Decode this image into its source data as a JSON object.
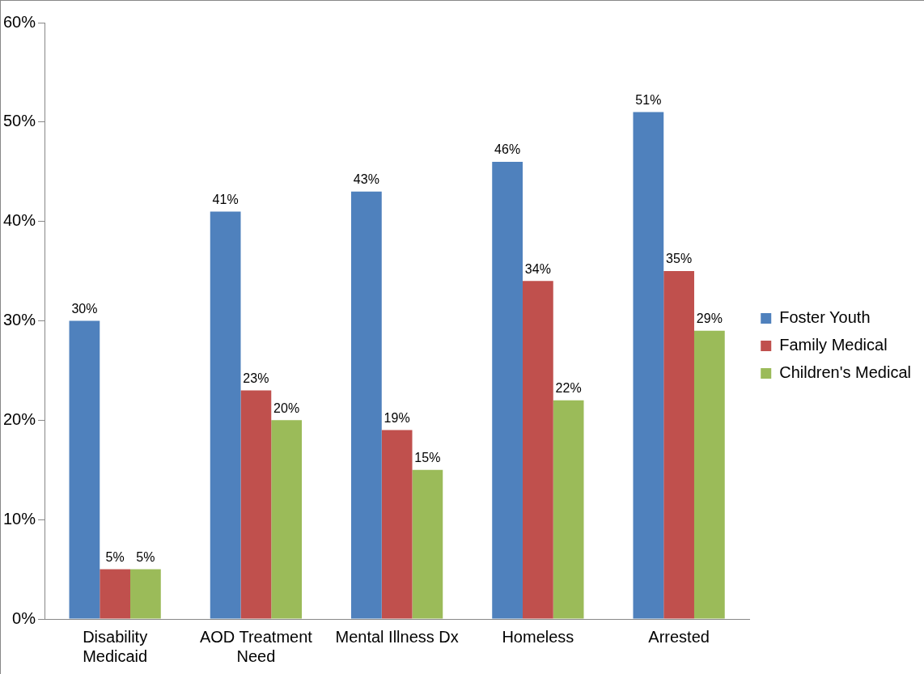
{
  "chart_data": {
    "type": "bar",
    "categories": [
      "Disability Medicaid",
      "AOD Treatment Need",
      "Mental Illness Dx",
      "Homeless",
      "Arrested"
    ],
    "series": [
      {
        "name": "Foster Youth",
        "color": "#4f81bd",
        "values": [
          30,
          41,
          43,
          46,
          51
        ],
        "value_labels": [
          "30%",
          "41%",
          "43%",
          "46%",
          "51%"
        ]
      },
      {
        "name": "Family Medical",
        "color": "#c0504d",
        "values": [
          5,
          23,
          19,
          34,
          35
        ],
        "value_labels": [
          "5%",
          "23%",
          "19%",
          "34%",
          "35%"
        ]
      },
      {
        "name": "Children's Medical",
        "color": "#9bbb59",
        "values": [
          5,
          20,
          15,
          22,
          29
        ],
        "value_labels": [
          "5%",
          "20%",
          "15%",
          "22%",
          "29%"
        ]
      }
    ],
    "ylim": [
      0,
      60
    ],
    "yticks": [
      {
        "value": 0,
        "label": "0%"
      },
      {
        "value": 10,
        "label": "10%"
      },
      {
        "value": 20,
        "label": "20%"
      },
      {
        "value": 30,
        "label": "30%"
      },
      {
        "value": 40,
        "label": "40%"
      },
      {
        "value": 50,
        "label": "50%"
      },
      {
        "value": 60,
        "label": "60%"
      }
    ],
    "grid": false,
    "legend": "right"
  }
}
